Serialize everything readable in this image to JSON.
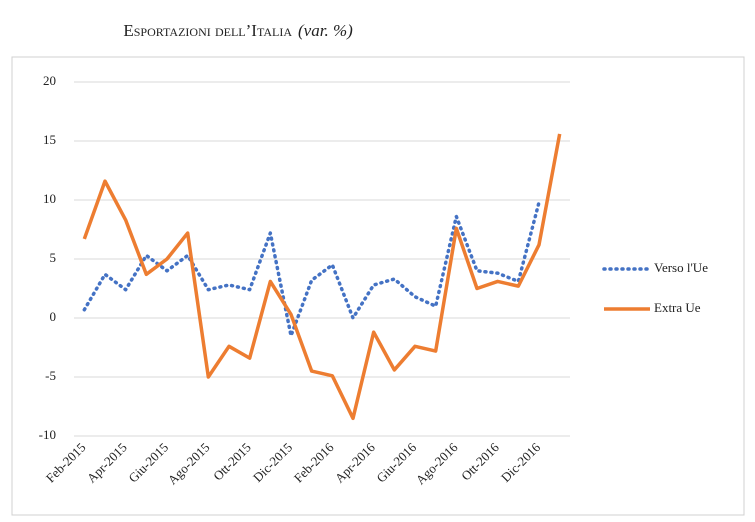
{
  "chart_data": {
    "type": "line",
    "title": "Esportazioni dell’Italia",
    "subtitle": "(var. %)",
    "categories": [
      "Feb-2015",
      null,
      "Apr-2015",
      null,
      "Giu-2015",
      null,
      "Ago-2015",
      null,
      "Ott-2015",
      null,
      "Dic-2015",
      null,
      "Feb-2016",
      null,
      "Apr-2016",
      null,
      "Giu-2016",
      null,
      "Ago-2016",
      null,
      "Ott-2016",
      null,
      "Dic-2016",
      null
    ],
    "series": [
      {
        "name": "Verso l'Ue",
        "color": "#4472c4",
        "dash": "dotted",
        "values": [
          0.7,
          3.7,
          2.4,
          5.3,
          4.0,
          5.3,
          2.4,
          2.8,
          2.4,
          7.2,
          -1.5,
          3.2,
          4.5,
          0.0,
          2.8,
          3.3,
          1.8,
          1.0,
          8.6,
          4.0,
          3.8,
          3.1,
          9.8,
          null
        ]
      },
      {
        "name": "Extra Ue",
        "color": "#ed7d31",
        "dash": "solid",
        "values": [
          6.7,
          11.6,
          8.3,
          3.7,
          5.0,
          7.2,
          -5.0,
          -2.4,
          -3.4,
          3.1,
          0.3,
          -4.5,
          -4.9,
          -8.5,
          -1.2,
          -4.4,
          -2.4,
          -2.8,
          7.6,
          2.5,
          3.1,
          2.7,
          6.2,
          15.6
        ]
      }
    ],
    "ylim": [
      -10,
      20
    ],
    "yticks": [
      -10,
      -5,
      0,
      5,
      10,
      15,
      20
    ],
    "grid": true,
    "legend": "right"
  }
}
